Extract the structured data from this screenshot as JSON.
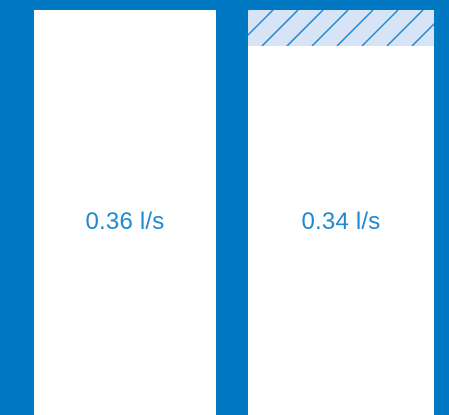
{
  "colors": {
    "frame": "#0079c2",
    "panel": "#ffffff",
    "label_text": "#1e88d0",
    "hatch_fill": "#d6e4f5",
    "hatch_stroke": "#1e88d0"
  },
  "panels": [
    {
      "flow_label": "0.36 l/s",
      "savings_hatch": false
    },
    {
      "flow_label": "0.34 l/s",
      "savings_hatch": true
    }
  ]
}
